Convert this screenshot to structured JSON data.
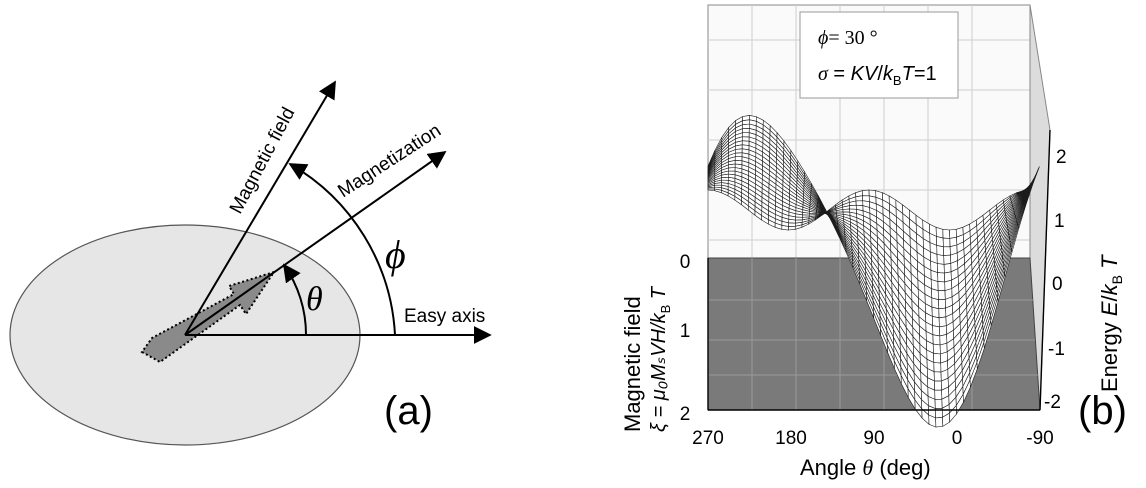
{
  "panel_a": {
    "panel_label": "(a)",
    "labels": {
      "magnetic_field": "Magnetic field",
      "magnetization": "Magnetization",
      "easy_axis": "Easy axis",
      "phi": "ϕ",
      "theta": "θ"
    }
  },
  "panel_b": {
    "panel_label": "(b)",
    "legend": {
      "phi_symbol": "ϕ",
      "phi_rest": "= 30 °",
      "sigma_symbol": "σ",
      "sigma_eq": " = ",
      "sigma_kv": "KV",
      "sigma_slash": "/",
      "sigma_k": "k",
      "sigma_sub": "B",
      "sigma_t": "T",
      "sigma_value": "=1"
    },
    "x_axis": {
      "label_text": "Angle ",
      "label_symbol": "θ",
      "label_unit": " (deg)",
      "ticks": [
        "270",
        "180",
        "90",
        "0",
        "-90"
      ]
    },
    "y_axis": {
      "label_line1": "Magnetic field",
      "label_line2": "ξ = μ₀MₛVH/k",
      "label_sub": "B",
      "label_t": " T",
      "ticks": [
        "0",
        "1",
        "2"
      ]
    },
    "z_axis": {
      "label_text": "Energy ",
      "label_e": "E",
      "label_slash": "/",
      "label_k": "k",
      "label_sub": "B",
      "label_t": " T",
      "ticks": [
        "2",
        "1",
        "0",
        "-1",
        "-2"
      ]
    }
  }
}
